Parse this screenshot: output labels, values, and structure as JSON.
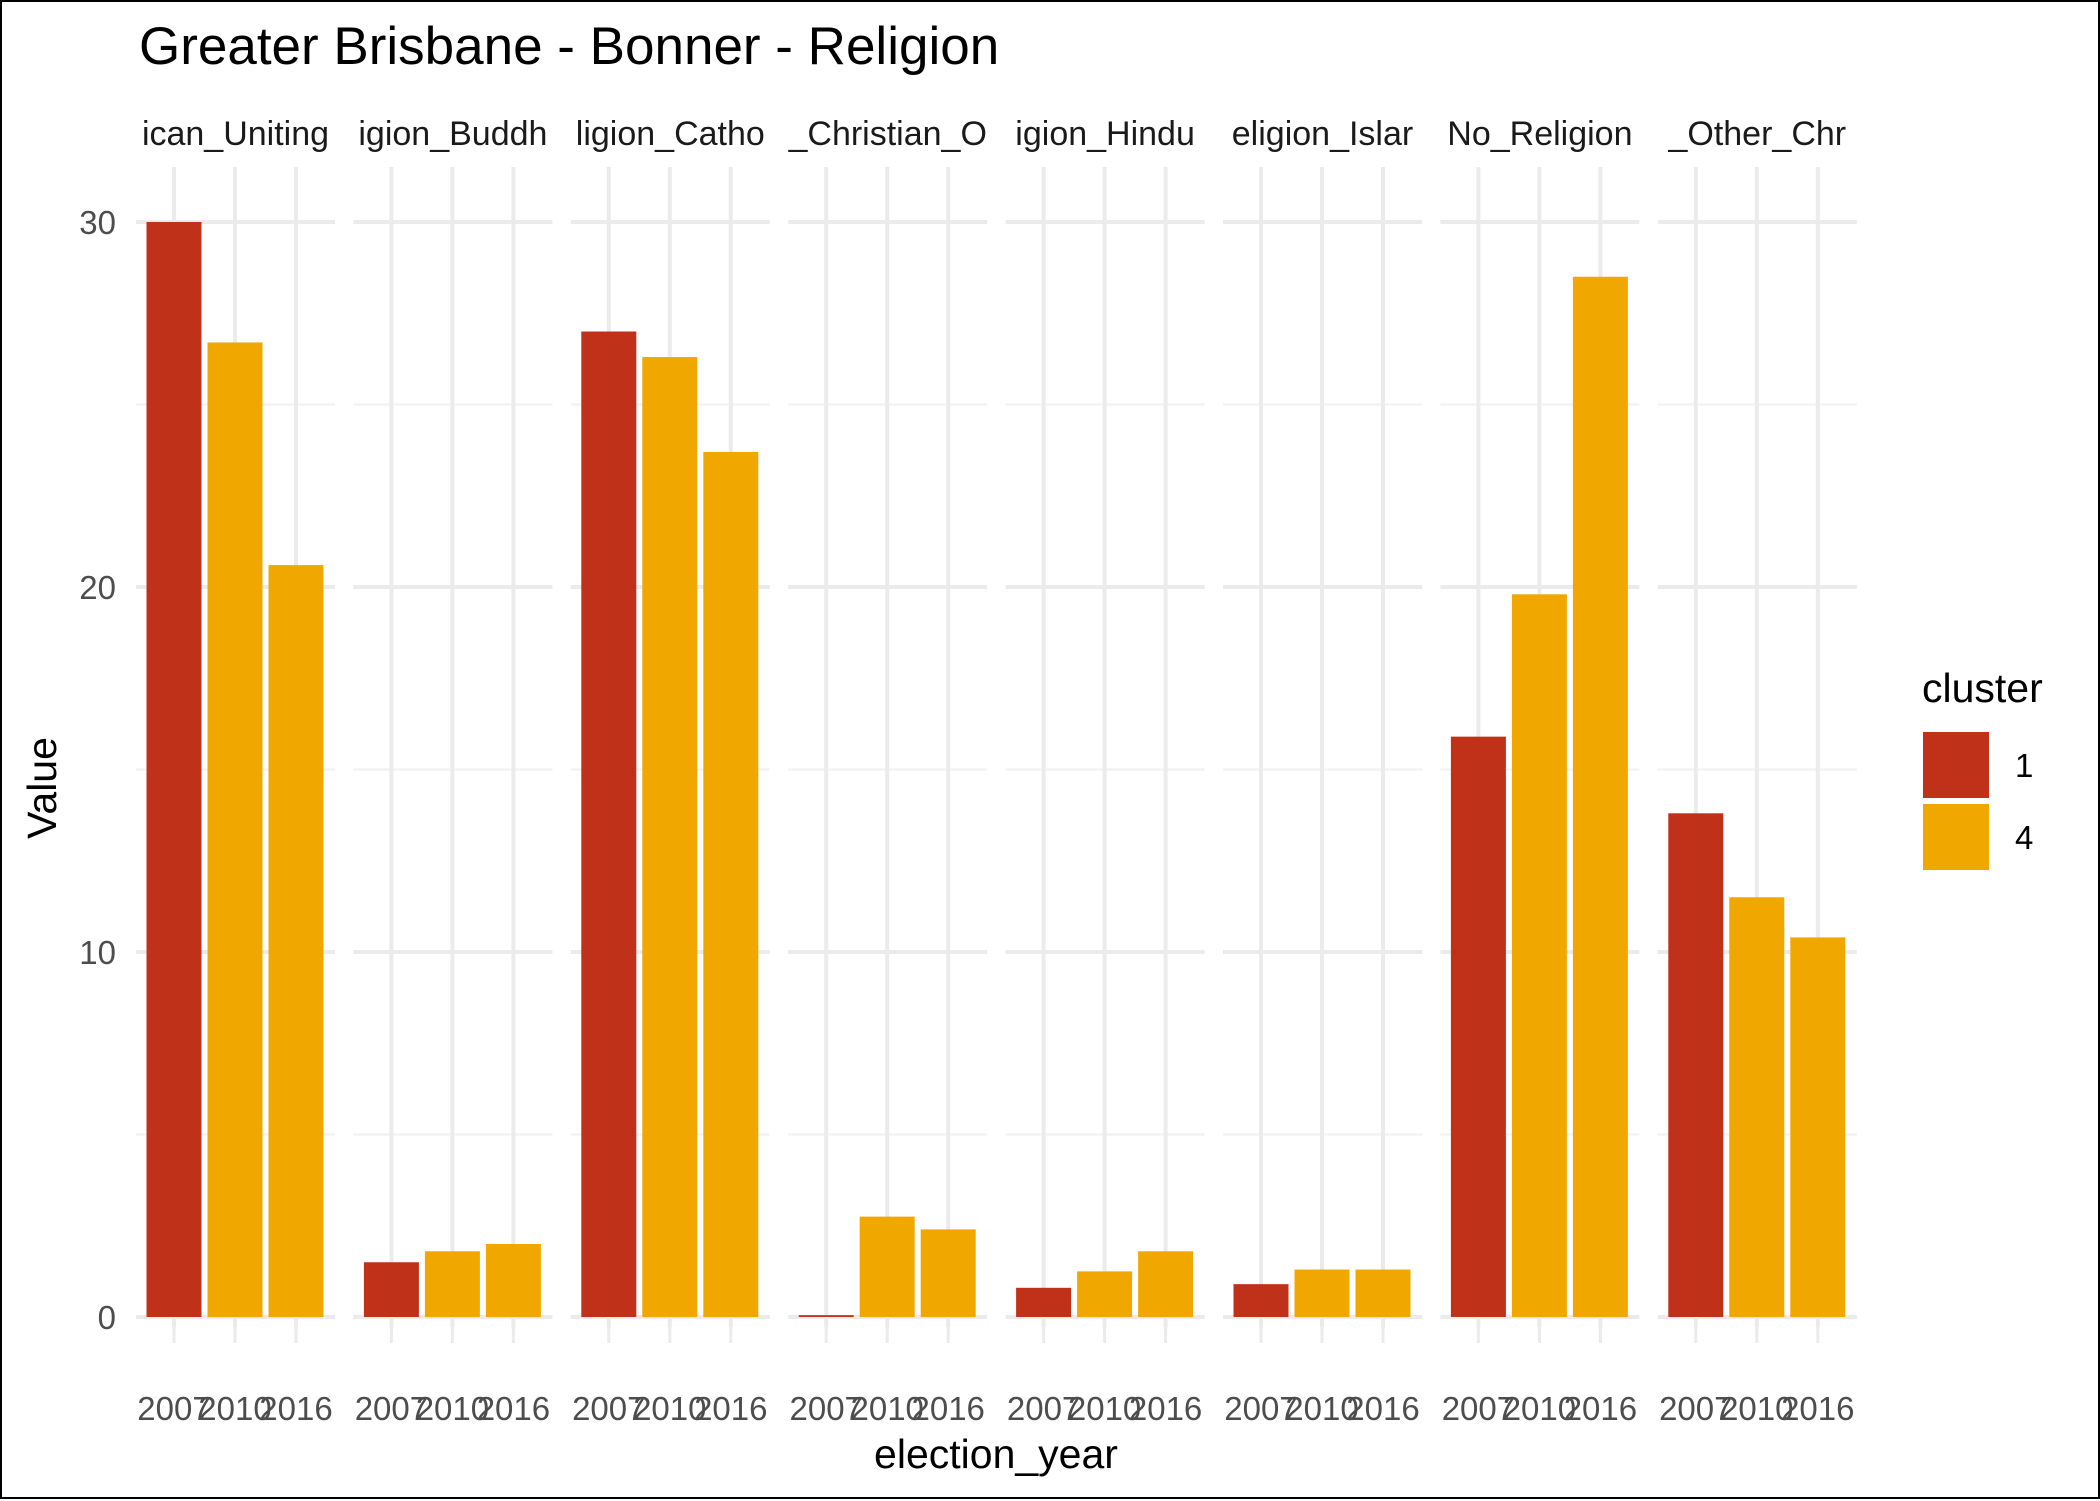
{
  "chart_data": {
    "type": "bar",
    "title": "Greater Brisbane - Bonner - Religion",
    "xlabel": "election_year",
    "ylabel": "Value",
    "ylim": [
      0,
      30
    ],
    "y_ticks": [
      0,
      10,
      20,
      30
    ],
    "grid": true,
    "legend": {
      "title": "cluster",
      "placement": "right",
      "items": [
        {
          "label": "1",
          "color": "#C0311A"
        },
        {
          "label": "4",
          "color": "#F0A800"
        }
      ]
    },
    "categories": [
      "2007",
      "2010",
      "2016"
    ],
    "panels": [
      {
        "label": "ican_Uniting",
        "values": [
          30.0,
          26.7,
          20.6
        ],
        "clusters": [
          "1",
          "4",
          "4"
        ]
      },
      {
        "label": "igion_Buddh",
        "values": [
          1.5,
          1.8,
          2.0
        ],
        "clusters": [
          "1",
          "4",
          "4"
        ]
      },
      {
        "label": "ligion_Catho",
        "values": [
          27.0,
          26.3,
          23.7
        ],
        "clusters": [
          "1",
          "4",
          "4"
        ]
      },
      {
        "label": "_Christian_O",
        "values": [
          0.05,
          2.75,
          2.4
        ],
        "clusters": [
          "1",
          "4",
          "4"
        ]
      },
      {
        "label": "igion_Hindu",
        "values": [
          0.8,
          1.25,
          1.8
        ],
        "clusters": [
          "1",
          "4",
          "4"
        ]
      },
      {
        "label": "eligion_Islar",
        "values": [
          0.9,
          1.3,
          1.3
        ],
        "clusters": [
          "1",
          "4",
          "4"
        ]
      },
      {
        "label": "No_Religion",
        "values": [
          15.9,
          19.8,
          28.5
        ],
        "clusters": [
          "1",
          "4",
          "4"
        ]
      },
      {
        "label": "_Other_Chr",
        "values": [
          13.8,
          11.5,
          10.4
        ],
        "clusters": [
          "1",
          "4",
          "4"
        ]
      }
    ]
  }
}
